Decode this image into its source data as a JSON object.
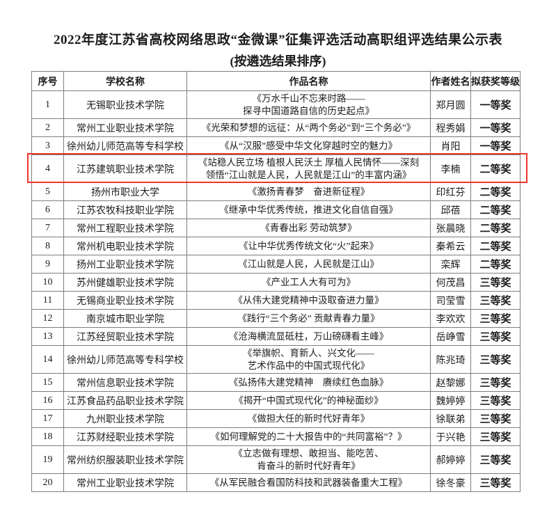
{
  "title": "2022年度江苏省高校网络思政“金微课”征集评选活动高职组评选结果公示表",
  "subtitle": "(按遴选结果排序)",
  "colors": {
    "highlight_border": "#ee352b",
    "table_border": "#7d7d7d",
    "text": "#1c1c1c",
    "background": "#ffffff"
  },
  "table": {
    "headers": [
      "序号",
      "学校名称",
      "作品名称",
      "作者姓名",
      "拟获奖等级"
    ],
    "rows": [
      {
        "no": "1",
        "school": "无锡职业技术学院",
        "work": "《万水千山不忘来时路——\n探寻中国道路自信的历史起点》",
        "author": "郑月圆",
        "award": "一等奖",
        "highlighted": false
      },
      {
        "no": "2",
        "school": "常州工业职业技术学院",
        "work": "《光荣和梦想的远征：从“两个务必”到“三个务必”》",
        "author": "程秀娟",
        "award": "一等奖",
        "highlighted": false
      },
      {
        "no": "3",
        "school": "徐州幼儿师范高等专科学校",
        "work": "《从“汉服”感受中华文化穿越时空的魅力》",
        "author": "肖阳",
        "award": "一等奖",
        "highlighted": false
      },
      {
        "no": "4",
        "school": "江苏建筑职业技术学院",
        "work": "《站稳人民立场 植根人民沃土 厚植人民情怀——深刻\n领悟“江山就是人民，人民就是江山”的丰富内涵》",
        "author": "李楠",
        "award": "二等奖",
        "highlighted": true
      },
      {
        "no": "5",
        "school": "扬州市职业大学",
        "work": "《激扬青春梦　奋进新征程》",
        "author": "印红芬",
        "award": "二等奖",
        "highlighted": false
      },
      {
        "no": "6",
        "school": "江苏农牧科技职业学院",
        "work": "《继承中华优秀传统，推进文化自信自强》",
        "author": "邱蓓",
        "award": "二等奖",
        "highlighted": false
      },
      {
        "no": "7",
        "school": "常州工程职业技术学院",
        "work": "《青春出彩 劳动筑梦》",
        "author": "张晨晓",
        "award": "二等奖",
        "highlighted": false
      },
      {
        "no": "8",
        "school": "常州机电职业技术学院",
        "work": "《让中华优秀传统文化“火”起来》",
        "author": "秦希云",
        "award": "二等奖",
        "highlighted": false
      },
      {
        "no": "9",
        "school": "扬州工业职业技术学院",
        "work": "《江山就是人民，人民就是江山》",
        "author": "栾辉",
        "award": "二等奖",
        "highlighted": false
      },
      {
        "no": "10",
        "school": "苏州健雄职业技术学院",
        "work": "《产业工人大有可为》",
        "author": "何茂昌",
        "award": "三等奖",
        "highlighted": false
      },
      {
        "no": "11",
        "school": "无锡商业职业技术学院",
        "work": "《从伟大建党精神中汲取奋进力量》",
        "author": "司莹雪",
        "award": "三等奖",
        "highlighted": false
      },
      {
        "no": "12",
        "school": "南京城市职业学院",
        "work": "《践行“三个务必” 贡献青春力量》",
        "author": "李欢欢",
        "award": "三等奖",
        "highlighted": false
      },
      {
        "no": "13",
        "school": "江苏经贸职业技术学院",
        "work": "《沧海横流显砥柱，万山磅礴看主峰》",
        "author": "岳峥雪",
        "award": "三等奖",
        "highlighted": false
      },
      {
        "no": "14",
        "school": "徐州幼儿师范高等专科学校",
        "work": "《举旗帜、育新人、兴文化——\n艺术作品中的中国式现代化》",
        "author": "陈兆琦",
        "award": "三等奖",
        "highlighted": false
      },
      {
        "no": "15",
        "school": "常州信息职业技术学院",
        "work": "《弘扬伟大建党精神　赓续红色血脉》",
        "author": "赵黎娜",
        "award": "三等奖",
        "highlighted": false
      },
      {
        "no": "16",
        "school": "江苏食品药品职业技术学院",
        "work": "《揭开“中国式现代化”的神秘面纱》",
        "author": "魏婷婷",
        "award": "三等奖",
        "highlighted": false
      },
      {
        "no": "17",
        "school": "九州职业技术学院",
        "work": "《做担大任的新时代好青年》",
        "author": "徐联弟",
        "award": "三等奖",
        "highlighted": false
      },
      {
        "no": "18",
        "school": "江苏财经职业技术学院",
        "work": "《如何理解党的二十大报告中的“共同富裕”？》",
        "author": "于兴艳",
        "award": "三等奖",
        "highlighted": false
      },
      {
        "no": "19",
        "school": "常州纺织服装职业技术学院",
        "work": "《立志做有理想、敢担当、能吃苦、\n肯奋斗的新时代好青年》",
        "author": "郝婷婷",
        "award": "三等奖",
        "highlighted": false
      },
      {
        "no": "20",
        "school": "常州工业职业技术学院",
        "work": "《从军民融合看国防科技和武器装备重大工程》",
        "author": "徐冬豪",
        "award": "三等奖",
        "highlighted": false
      }
    ]
  }
}
